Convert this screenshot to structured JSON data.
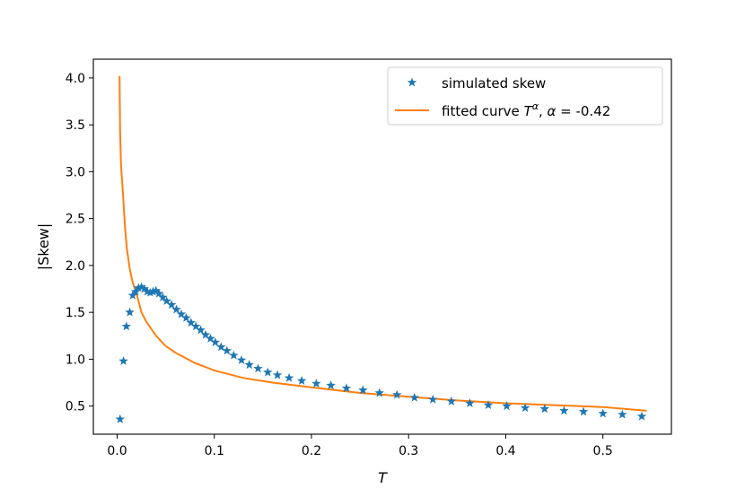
{
  "chart_data": {
    "type": "scatter",
    "xlabel": "T",
    "ylabel": "|Skew|",
    "xlim": [
      -0.0245,
      0.5705
    ],
    "ylim": [
      0.2,
      4.2
    ],
    "xticks": [
      {
        "value": 0.0,
        "label": "0.0"
      },
      {
        "value": 0.1,
        "label": "0.1"
      },
      {
        "value": 0.2,
        "label": "0.2"
      },
      {
        "value": 0.3,
        "label": "0.3"
      },
      {
        "value": 0.4,
        "label": "0.4"
      },
      {
        "value": 0.5,
        "label": "0.5"
      }
    ],
    "yticks": [
      {
        "value": 0.5,
        "label": "0.5"
      },
      {
        "value": 1.0,
        "label": "1.0"
      },
      {
        "value": 1.5,
        "label": "1.5"
      },
      {
        "value": 2.0,
        "label": "2.0"
      },
      {
        "value": 2.5,
        "label": "2.5"
      },
      {
        "value": 3.0,
        "label": "3.0"
      },
      {
        "value": 3.5,
        "label": "3.5"
      },
      {
        "value": 4.0,
        "label": "4.0"
      }
    ],
    "grid": false,
    "legend_position": "top-right",
    "series": [
      {
        "name": "simulated skew",
        "kind": "scatter",
        "marker": "star",
        "color": "#1f77b4",
        "x": [
          0.003,
          0.0065,
          0.0095,
          0.013,
          0.016,
          0.019,
          0.022,
          0.025,
          0.028,
          0.031,
          0.034,
          0.037,
          0.04,
          0.043,
          0.047,
          0.051,
          0.056,
          0.061,
          0.066,
          0.071,
          0.076,
          0.081,
          0.086,
          0.091,
          0.096,
          0.101,
          0.107,
          0.113,
          0.12,
          0.128,
          0.136,
          0.145,
          0.155,
          0.165,
          0.177,
          0.19,
          0.205,
          0.22,
          0.236,
          0.253,
          0.27,
          0.288,
          0.306,
          0.325,
          0.344,
          0.363,
          0.382,
          0.401,
          0.42,
          0.44,
          0.46,
          0.48,
          0.5,
          0.52,
          0.54
        ],
        "y": [
          0.36,
          0.98,
          1.35,
          1.5,
          1.68,
          1.72,
          1.76,
          1.77,
          1.75,
          1.72,
          1.71,
          1.72,
          1.73,
          1.7,
          1.66,
          1.62,
          1.58,
          1.53,
          1.48,
          1.44,
          1.39,
          1.35,
          1.31,
          1.26,
          1.22,
          1.18,
          1.13,
          1.09,
          1.04,
          0.99,
          0.94,
          0.9,
          0.86,
          0.83,
          0.8,
          0.77,
          0.74,
          0.72,
          0.69,
          0.67,
          0.64,
          0.62,
          0.59,
          0.57,
          0.55,
          0.53,
          0.51,
          0.5,
          0.48,
          0.47,
          0.45,
          0.44,
          0.42,
          0.41,
          0.39
        ]
      },
      {
        "name": "fitted curve T^α, α = -0.42",
        "kind": "line",
        "color": "#ff7f0e",
        "x": [
          0.0025,
          0.003,
          0.004,
          0.005,
          0.006,
          0.008,
          0.01,
          0.013,
          0.016,
          0.02,
          0.025,
          0.03,
          0.04,
          0.05,
          0.06,
          0.08,
          0.1,
          0.13,
          0.16,
          0.2,
          0.25,
          0.3,
          0.35,
          0.4,
          0.45,
          0.5,
          0.545
        ],
        "y": [
          4.02,
          3.45,
          3.07,
          2.91,
          2.77,
          2.42,
          2.18,
          1.96,
          1.82,
          1.7,
          1.5,
          1.4,
          1.25,
          1.14,
          1.07,
          0.96,
          0.88,
          0.8,
          0.75,
          0.7,
          0.64,
          0.6,
          0.56,
          0.53,
          0.51,
          0.49,
          0.45
        ]
      }
    ],
    "legend": {
      "entries": [
        {
          "text": "simulated skew",
          "color": "#1f77b4",
          "marker": "star"
        },
        {
          "text_main": "fitted curve ",
          "text_T": "T",
          "text_sup": "α",
          "text_mid": ", ",
          "text_alpha": "α",
          "text_tail": " = -0.42",
          "color": "#ff7f0e",
          "marker": "line"
        }
      ]
    }
  }
}
